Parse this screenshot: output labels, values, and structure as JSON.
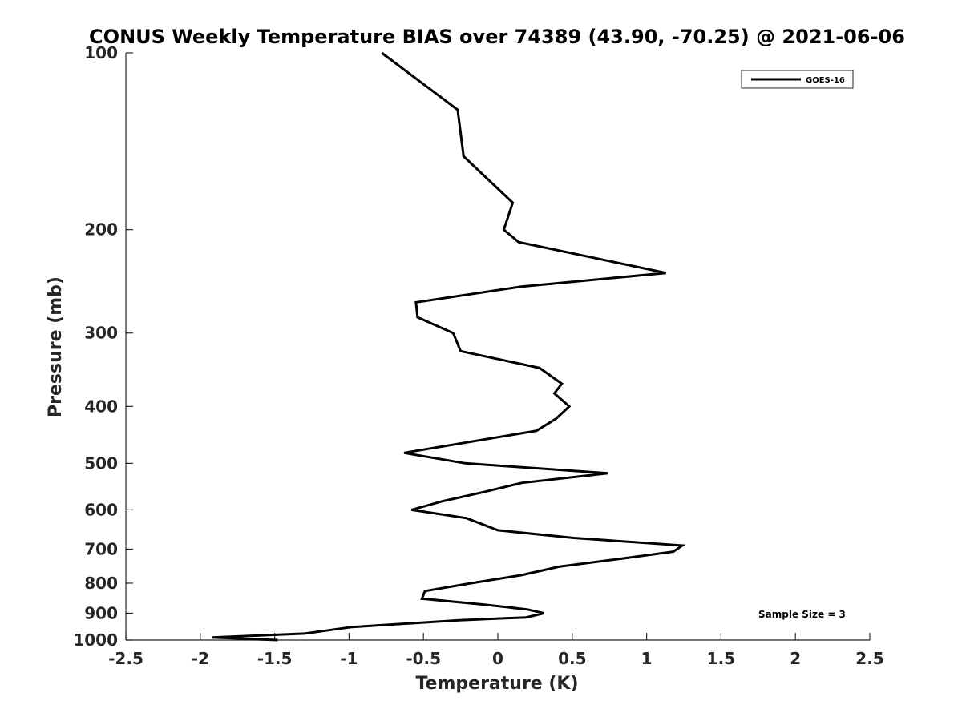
{
  "chart_data": {
    "type": "line",
    "title": "CONUS Weekly Temperature BIAS over 74389 (43.90, -70.25) @ 2021-06-06",
    "xlabel": "Temperature (K)",
    "ylabel": "Pressure (mb)",
    "xlim": [
      -2.5,
      2.5
    ],
    "ylim": [
      100,
      1000
    ],
    "y_scale": "log",
    "y_reversed": true,
    "x_ticks": [
      -2.5,
      -2,
      -1.5,
      -1,
      -0.5,
      0,
      0.5,
      1,
      1.5,
      2,
      2.5
    ],
    "x_tick_labels": [
      "-2.5",
      "-2",
      "-1.5",
      "-1",
      "-0.5",
      "0",
      "0.5",
      "1",
      "1.5",
      "2",
      "2.5"
    ],
    "y_ticks": [
      100,
      200,
      300,
      400,
      500,
      600,
      700,
      800,
      900,
      1000
    ],
    "y_tick_labels": [
      "100",
      "200",
      "300",
      "400",
      "500",
      "600",
      "700",
      "800",
      "900",
      "1000"
    ],
    "grid": false,
    "legend_position": "top-right",
    "series": [
      {
        "name": "GOES-16",
        "color": "#000000",
        "points": [
          [
            -0.78,
            100
          ],
          [
            -0.27,
            125
          ],
          [
            -0.23,
            150
          ],
          [
            0.1,
            180
          ],
          [
            0.04,
            200
          ],
          [
            0.14,
            210
          ],
          [
            1.13,
            237
          ],
          [
            0.16,
            250
          ],
          [
            -0.55,
            266
          ],
          [
            -0.54,
            282
          ],
          [
            -0.3,
            300
          ],
          [
            -0.25,
            322
          ],
          [
            0.28,
            344
          ],
          [
            0.43,
            366
          ],
          [
            0.38,
            380
          ],
          [
            0.48,
            400
          ],
          [
            0.39,
            420
          ],
          [
            0.26,
            440
          ],
          [
            -0.63,
            480
          ],
          [
            -0.22,
            500
          ],
          [
            0.74,
            520
          ],
          [
            0.16,
            540
          ],
          [
            -0.1,
            560
          ],
          [
            -0.37,
            580
          ],
          [
            -0.58,
            600
          ],
          [
            -0.21,
            620
          ],
          [
            0.0,
            650
          ],
          [
            0.51,
            670
          ],
          [
            1.24,
            690
          ],
          [
            1.18,
            707
          ],
          [
            0.86,
            725
          ],
          [
            0.41,
            750
          ],
          [
            0.16,
            775
          ],
          [
            -0.18,
            800
          ],
          [
            -0.49,
            825
          ],
          [
            -0.51,
            850
          ],
          [
            -0.09,
            870
          ],
          [
            0.2,
            887
          ],
          [
            0.31,
            900
          ],
          [
            0.19,
            915
          ],
          [
            -0.26,
            925
          ],
          [
            -0.98,
            950
          ],
          [
            -1.3,
            975
          ],
          [
            -1.92,
            990
          ],
          [
            -1.48,
            1000
          ]
        ]
      }
    ],
    "legend": [
      {
        "label": "GOES-16"
      }
    ],
    "annotation": "Sample Size = 3"
  }
}
